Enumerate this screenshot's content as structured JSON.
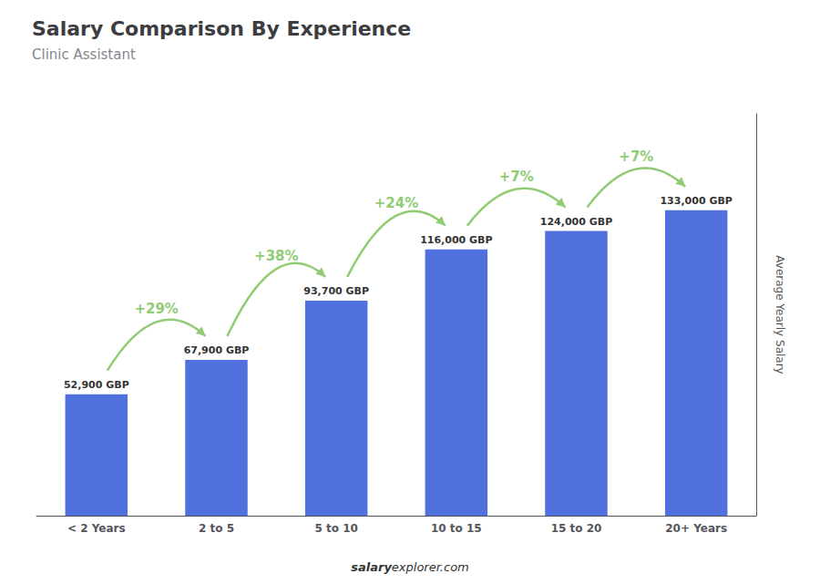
{
  "chart_data": {
    "type": "bar",
    "title": "Salary Comparison By Experience",
    "subtitle": "Clinic Assistant",
    "categories": [
      "< 2 Years",
      "2 to 5",
      "5 to 10",
      "10 to 15",
      "15 to 20",
      "20+ Years"
    ],
    "values": [
      52900,
      67900,
      93700,
      116000,
      124000,
      133000
    ],
    "value_labels": [
      "52,900 GBP",
      "67,900 GBP",
      "93,700 GBP",
      "116,000 GBP",
      "124,000 GBP",
      "133,000 GBP"
    ],
    "data_labels": true,
    "annotations": [
      "+29%",
      "+38%",
      "+24%",
      "+7%",
      "+7%"
    ],
    "ylabel": "Average Yearly Salary",
    "footer": [
      "salary",
      "explorer.com"
    ],
    "ylim": [
      0,
      175000
    ],
    "grid": false,
    "tick_labels": "x"
  }
}
